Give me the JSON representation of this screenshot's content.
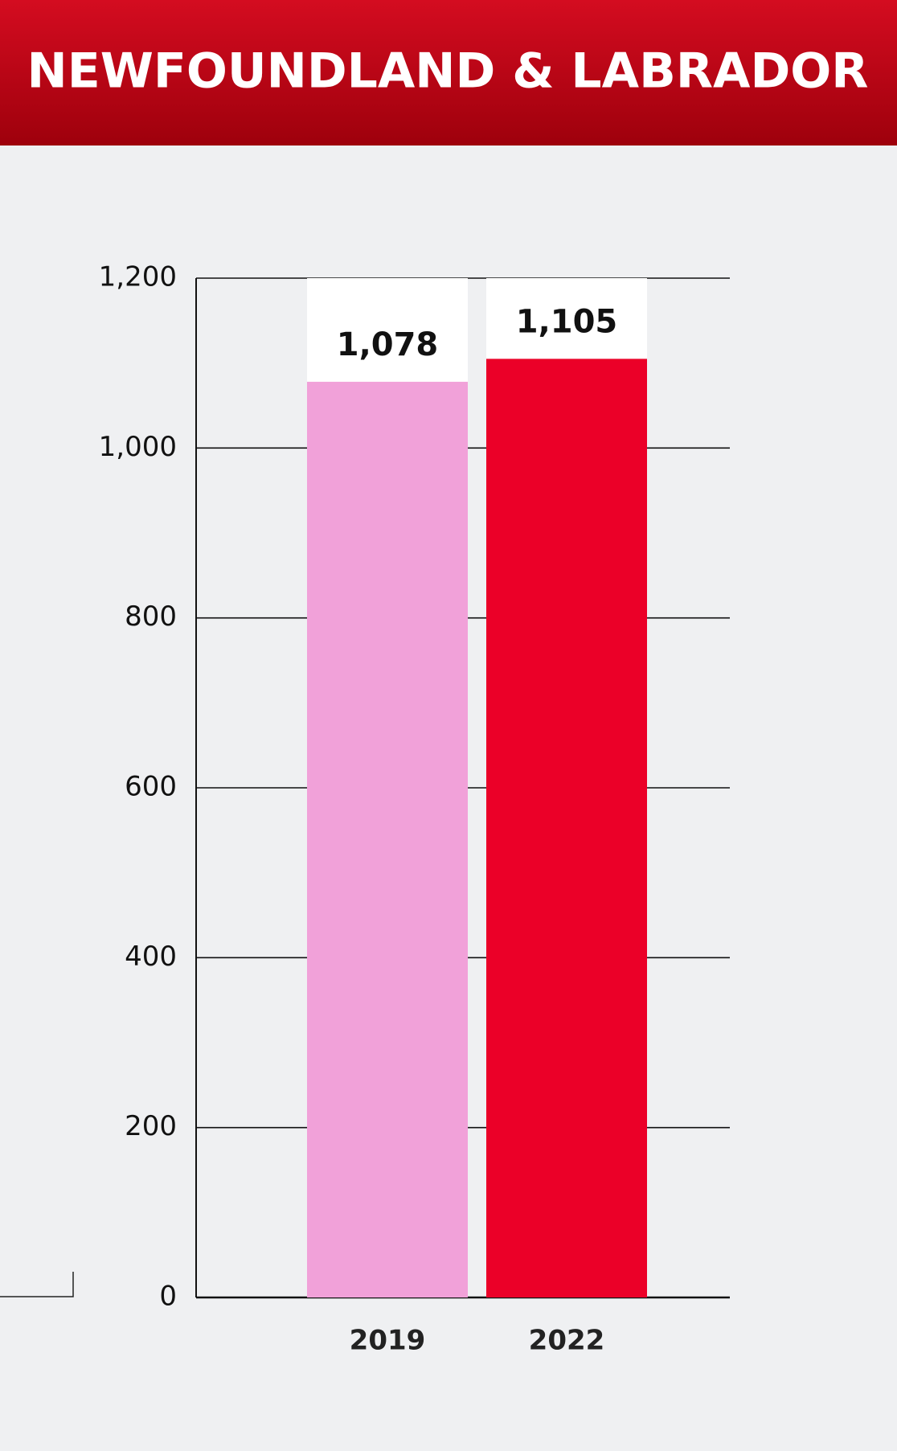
{
  "chart_data": {
    "type": "bar",
    "title": "NEWFOUNDLAND & LABRADOR",
    "categories": [
      "2019",
      "2022"
    ],
    "values": [
      1078,
      1105
    ],
    "value_labels": [
      "1,078",
      "1,105"
    ],
    "colors": [
      "#f1a1d9",
      "#eb0028"
    ],
    "ylim": [
      0,
      1200
    ],
    "yticks": [
      0,
      200,
      400,
      600,
      800,
      {
        "value": 1000,
        "label": "1,000"
      },
      {
        "value": 1200,
        "label": "1,200"
      }
    ],
    "grid": true
  }
}
